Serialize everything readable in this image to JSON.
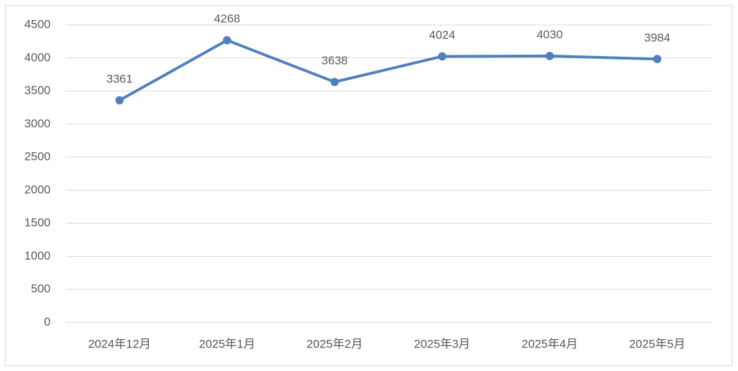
{
  "chart_data": {
    "type": "line",
    "categories": [
      "2024年12月",
      "2025年1月",
      "2025年2月",
      "2025年3月",
      "2025年4月",
      "2025年5月"
    ],
    "series": [
      {
        "name": "value",
        "color": "#4f81bd",
        "values": [
          3361,
          4268,
          3638,
          4024,
          4030,
          3984
        ]
      }
    ],
    "ylim": [
      0,
      4500
    ],
    "yticks": [
      0,
      500,
      1000,
      1500,
      2000,
      2500,
      3000,
      3500,
      4000,
      4500
    ],
    "grid": true
  }
}
